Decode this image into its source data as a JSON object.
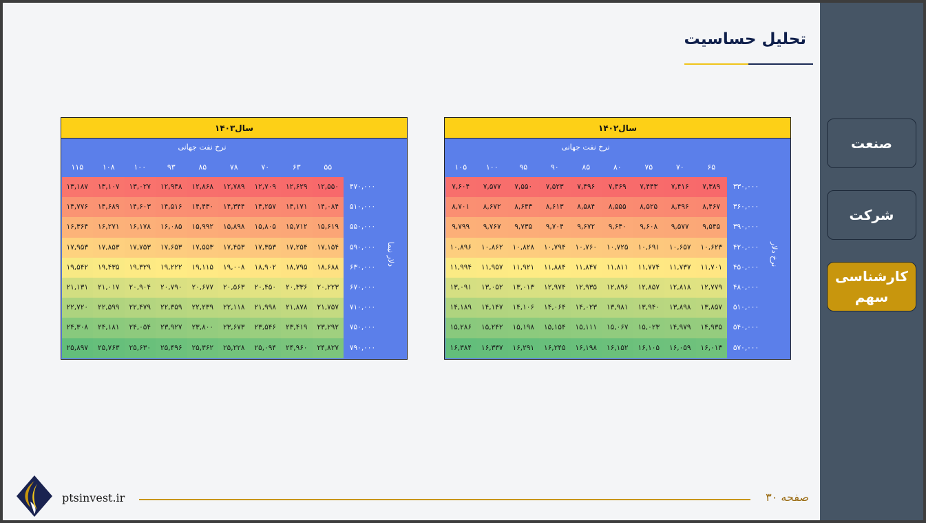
{
  "slide": {
    "title": "تحلیل حساسیت",
    "website": "ptsinvest.ir",
    "page_label": "صفحه ۳۰"
  },
  "sidebar": {
    "items": [
      {
        "label": "صنعت",
        "active": false
      },
      {
        "label": "شرکت",
        "active": false
      },
      {
        "label": "کارشناسی سهم",
        "active": true
      }
    ]
  },
  "colors": {
    "header": "#fdd017",
    "table_bg": "#5b7fea",
    "accent": "#c8960d",
    "sidebar": "#465565"
  },
  "tables": [
    {
      "title": "سال۱۴۰۲",
      "col_axis_label": "نرخ نفت جهانی",
      "row_axis_label": "نرخ دلار",
      "columns": [
        "۶۵",
        "۷۰",
        "۷۵",
        "۸۰",
        "۸۵",
        "۹۰",
        "۹۵",
        "۱۰۰",
        "۱۰۵"
      ],
      "rows": [
        {
          "label": "۳۳۰,۰۰۰",
          "values": [
            "۷,۳۸۹",
            "۷,۴۱۶",
            "۷,۴۴۳",
            "۷,۴۶۹",
            "۷,۴۹۶",
            "۷,۵۲۳",
            "۷,۵۵۰",
            "۷,۵۷۷",
            "۷,۶۰۴"
          ]
        },
        {
          "label": "۳۶۰,۰۰۰",
          "values": [
            "۸,۴۶۷",
            "۸,۴۹۶",
            "۸,۵۲۵",
            "۸,۵۵۵",
            "۸,۵۸۴",
            "۸,۶۱۳",
            "۸,۶۴۳",
            "۸,۶۷۲",
            "۸,۷۰۱"
          ]
        },
        {
          "label": "۳۹۰,۰۰۰",
          "values": [
            "۹,۵۴۵",
            "۹,۵۷۷",
            "۹,۶۰۸",
            "۹,۶۴۰",
            "۹,۶۷۲",
            "۹,۷۰۴",
            "۹,۷۳۵",
            "۹,۷۶۷",
            "۹,۷۹۹"
          ]
        },
        {
          "label": "۴۲۰,۰۰۰",
          "values": [
            "۱۰,۶۲۳",
            "۱۰,۶۵۷",
            "۱۰,۶۹۱",
            "۱۰,۷۲۵",
            "۱۰,۷۶۰",
            "۱۰,۷۹۴",
            "۱۰,۸۲۸",
            "۱۰,۸۶۲",
            "۱۰,۸۹۶"
          ]
        },
        {
          "label": "۴۵۰,۰۰۰",
          "values": [
            "۱۱,۷۰۱",
            "۱۱,۷۳۷",
            "۱۱,۷۷۴",
            "۱۱,۸۱۱",
            "۱۱,۸۴۷",
            "۱۱,۸۸۴",
            "۱۱,۹۲۱",
            "۱۱,۹۵۷",
            "۱۱,۹۹۴"
          ]
        },
        {
          "label": "۴۸۰,۰۰۰",
          "values": [
            "۱۲,۷۷۹",
            "۱۲,۸۱۸",
            "۱۲,۸۵۷",
            "۱۲,۸۹۶",
            "۱۲,۹۳۵",
            "۱۲,۹۷۴",
            "۱۳,۰۱۳",
            "۱۳,۰۵۲",
            "۱۳,۰۹۱"
          ]
        },
        {
          "label": "۵۱۰,۰۰۰",
          "values": [
            "۱۳,۸۵۷",
            "۱۳,۸۹۸",
            "۱۳,۹۴۰",
            "۱۳,۹۸۱",
            "۱۴,۰۲۳",
            "۱۴,۰۶۴",
            "۱۴,۱۰۶",
            "۱۴,۱۴۷",
            "۱۴,۱۸۹"
          ]
        },
        {
          "label": "۵۴۰,۰۰۰",
          "values": [
            "۱۴,۹۳۵",
            "۱۴,۹۷۹",
            "۱۵,۰۲۳",
            "۱۵,۰۶۷",
            "۱۵,۱۱۱",
            "۱۵,۱۵۴",
            "۱۵,۱۹۸",
            "۱۵,۲۴۲",
            "۱۵,۲۸۶"
          ]
        },
        {
          "label": "۵۷۰,۰۰۰",
          "values": [
            "۱۶,۰۱۳",
            "۱۶,۰۵۹",
            "۱۶,۱۰۵",
            "۱۶,۱۵۲",
            "۱۶,۱۹۸",
            "۱۶,۲۴۵",
            "۱۶,۲۹۱",
            "۱۶,۳۳۷",
            "۱۶,۳۸۴"
          ]
        }
      ]
    },
    {
      "title": "سال۱۴۰۳",
      "col_axis_label": "نرخ نفت جهانی",
      "row_axis_label": "دلار نیما",
      "columns": [
        "۵۵",
        "۶۳",
        "۷۰",
        "۷۸",
        "۸۵",
        "۹۳",
        "۱۰۰",
        "۱۰۸",
        "۱۱۵"
      ],
      "rows": [
        {
          "label": "۴۷۰,۰۰۰",
          "values": [
            "۱۲,۵۵۰",
            "۱۲,۶۲۹",
            "۱۲,۷۰۹",
            "۱۲,۷۸۹",
            "۱۲,۸۶۸",
            "۱۲,۹۴۸",
            "۱۳,۰۲۷",
            "۱۳,۱۰۷",
            "۱۳,۱۸۷"
          ]
        },
        {
          "label": "۵۱۰,۰۰۰",
          "values": [
            "۱۴,۰۸۴",
            "۱۴,۱۷۱",
            "۱۴,۲۵۷",
            "۱۴,۳۴۴",
            "۱۴,۴۳۰",
            "۱۴,۵۱۶",
            "۱۴,۶۰۳",
            "۱۴,۶۸۹",
            "۱۴,۷۷۶"
          ]
        },
        {
          "label": "۵۵۰,۰۰۰",
          "values": [
            "۱۵,۶۱۹",
            "۱۵,۷۱۲",
            "۱۵,۸۰۵",
            "۱۵,۸۹۸",
            "۱۵,۹۹۲",
            "۱۶,۰۸۵",
            "۱۶,۱۷۸",
            "۱۶,۲۷۱",
            "۱۶,۳۶۴"
          ]
        },
        {
          "label": "۵۹۰,۰۰۰",
          "values": [
            "۱۷,۱۵۴",
            "۱۷,۲۵۴",
            "۱۷,۳۵۳",
            "۱۷,۴۵۳",
            "۱۷,۵۵۳",
            "۱۷,۶۵۳",
            "۱۷,۷۵۳",
            "۱۷,۸۵۳",
            "۱۷,۹۵۳"
          ]
        },
        {
          "label": "۶۳۰,۰۰۰",
          "values": [
            "۱۸,۶۸۸",
            "۱۸,۷۹۵",
            "۱۸,۹۰۲",
            "۱۹,۰۰۸",
            "۱۹,۱۱۵",
            "۱۹,۲۲۲",
            "۱۹,۳۲۹",
            "۱۹,۴۳۵",
            "۱۹,۵۴۲"
          ]
        },
        {
          "label": "۶۷۰,۰۰۰",
          "values": [
            "۲۰,۲۲۳",
            "۲۰,۳۳۶",
            "۲۰,۴۵۰",
            "۲۰,۵۶۳",
            "۲۰,۶۷۷",
            "۲۰,۷۹۰",
            "۲۰,۹۰۴",
            "۲۱,۰۱۷",
            "۲۱,۱۳۱"
          ]
        },
        {
          "label": "۷۱۰,۰۰۰",
          "values": [
            "۲۱,۷۵۷",
            "۲۱,۸۷۸",
            "۲۱,۹۹۸",
            "۲۲,۱۱۸",
            "۲۲,۲۳۹",
            "۲۲,۳۵۹",
            "۲۲,۴۷۹",
            "۲۲,۵۹۹",
            "۲۲,۷۲۰"
          ]
        },
        {
          "label": "۷۵۰,۰۰۰",
          "values": [
            "۲۳,۲۹۲",
            "۲۳,۴۱۹",
            "۲۳,۵۴۶",
            "۲۳,۶۷۳",
            "۲۳,۸۰۰",
            "۲۳,۹۲۷",
            "۲۴,۰۵۴",
            "۲۴,۱۸۱",
            "۲۴,۳۰۸"
          ]
        },
        {
          "label": "۷۹۰,۰۰۰",
          "values": [
            "۲۴,۸۲۷",
            "۲۴,۹۶۰",
            "۲۵,۰۹۴",
            "۲۵,۲۲۸",
            "۲۵,۳۶۲",
            "۲۵,۴۹۶",
            "۲۵,۶۳۰",
            "۲۵,۷۶۳",
            "۲۵,۸۹۷"
          ]
        }
      ]
    }
  ]
}
